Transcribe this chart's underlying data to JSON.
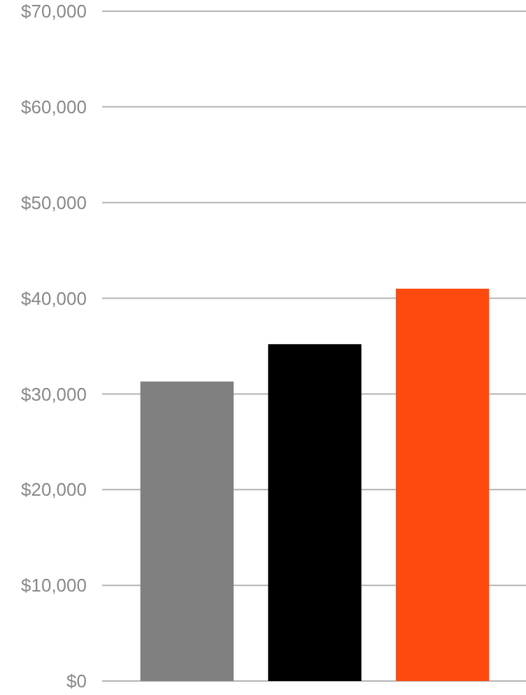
{
  "chart_data": {
    "type": "bar",
    "categories": [
      null,
      null,
      null
    ],
    "values": [
      31300,
      35200,
      41000
    ],
    "colors": [
      "#808080",
      "#000000",
      "#ff4a0f"
    ],
    "ylim": [
      0,
      70000
    ],
    "yticks": [
      {
        "value": 0,
        "label": "$0"
      },
      {
        "value": 10000,
        "label": "$10,000"
      },
      {
        "value": 20000,
        "label": "$20,000"
      },
      {
        "value": 30000,
        "label": "$30,000"
      },
      {
        "value": 40000,
        "label": "$40,000"
      },
      {
        "value": 50000,
        "label": "$50,000"
      },
      {
        "value": 60000,
        "label": "$60,000"
      },
      {
        "value": 70000,
        "label": "$70,000"
      }
    ],
    "grid": "y"
  }
}
